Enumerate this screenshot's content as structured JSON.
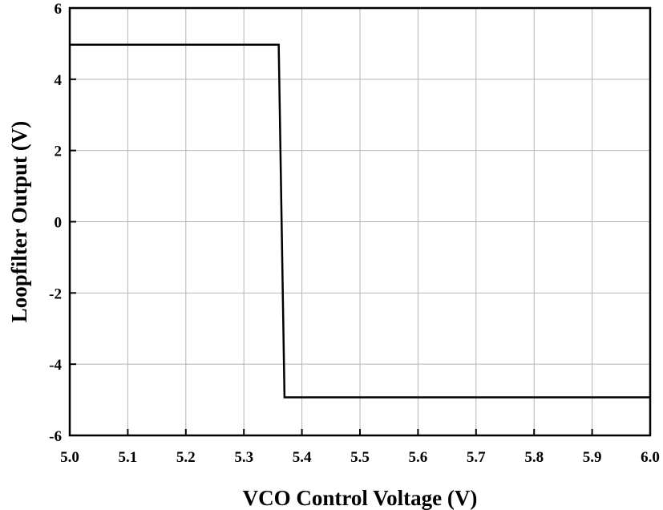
{
  "chart_data": {
    "type": "line",
    "title": "",
    "xlabel": "VCO Control Voltage (V)",
    "ylabel": "Loopfilter Output (V)",
    "xlim": [
      5.0,
      6.0
    ],
    "ylim": [
      -6,
      6
    ],
    "xticks": [
      5.0,
      5.1,
      5.2,
      5.3,
      5.4,
      5.5,
      5.6,
      5.7,
      5.8,
      5.9,
      6.0
    ],
    "xtick_labels": [
      "5.0",
      "5.1",
      "5.2",
      "5.3",
      "5.4",
      "5.5",
      "5.6",
      "5.7",
      "5.8",
      "5.9",
      "6.0"
    ],
    "yticks": [
      -6,
      -4,
      -2,
      0,
      2,
      4,
      6
    ],
    "ytick_labels": [
      "-6",
      "-4",
      "-2",
      "0",
      "2",
      "4",
      "6"
    ],
    "grid": true,
    "series": [
      {
        "x": [
          5.0,
          5.36,
          5.37,
          6.0
        ],
        "y": [
          4.97,
          4.97,
          -4.93,
          -4.93
        ],
        "color": "#000000"
      }
    ]
  }
}
